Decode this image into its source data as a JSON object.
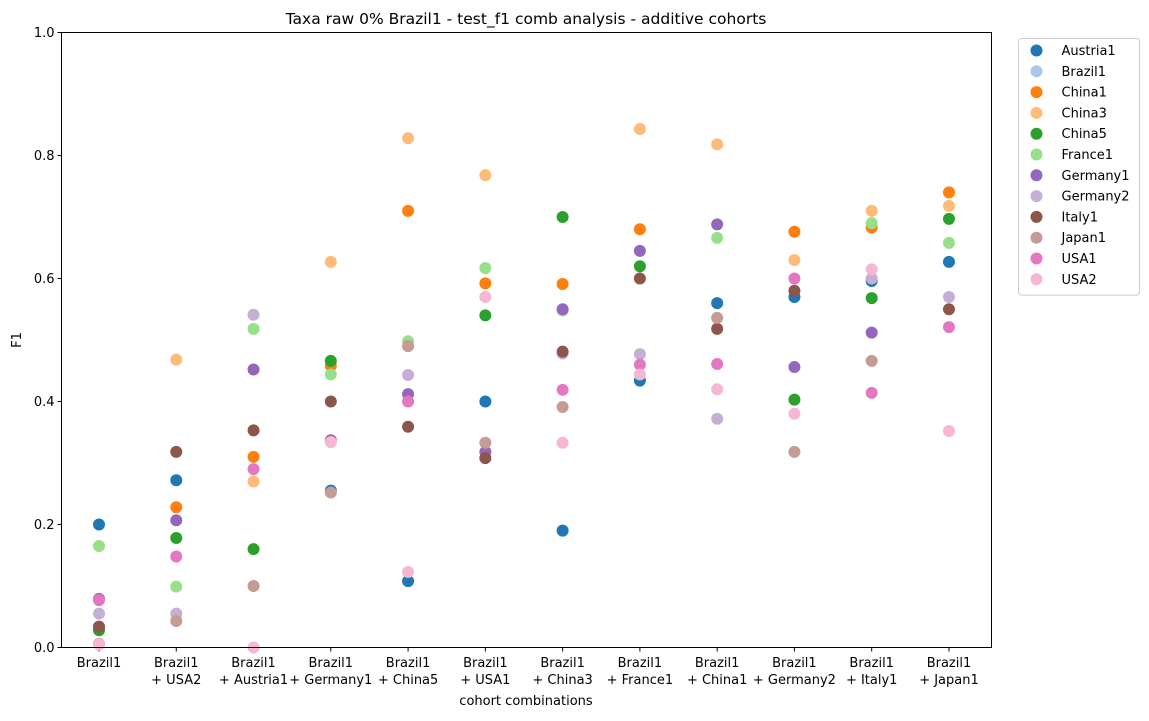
{
  "chart_data": {
    "type": "scatter",
    "title": "Taxa raw 0% Brazil1 - test_f1 comb analysis - additive cohorts",
    "xlabel": "cohort combinations",
    "ylabel": "F1",
    "ylim": [
      0,
      1.0
    ],
    "yticks": [
      "0.0",
      "0.2",
      "0.4",
      "0.6",
      "0.8",
      "1.0"
    ],
    "grid": false,
    "legend_position": "outside-top-right",
    "categories": [
      [
        "Brazil1"
      ],
      [
        "Brazil1",
        "+ USA2"
      ],
      [
        "Brazil1",
        "+ Austria1"
      ],
      [
        "Brazil1",
        "+ Germany1"
      ],
      [
        "Brazil1",
        "+ China5"
      ],
      [
        "Brazil1",
        "+ USA1"
      ],
      [
        "Brazil1",
        "+ China3"
      ],
      [
        "Brazil1",
        "+ France1"
      ],
      [
        "Brazil1",
        "+ China1"
      ],
      [
        "Brazil1",
        "+ Germany2"
      ],
      [
        "Brazil1",
        "+ Italy1"
      ],
      [
        "Brazil1",
        "+ Japan1"
      ]
    ],
    "series": [
      {
        "name": "Austria1",
        "color": "#1f77b4",
        "values": [
          0.2,
          0.272,
          null,
          0.255,
          0.108,
          0.4,
          0.19,
          0.434,
          0.56,
          0.57,
          0.596,
          0.627
        ]
      },
      {
        "name": "Brazil1",
        "color": "#aec7e8",
        "values": [
          null,
          null,
          null,
          null,
          null,
          null,
          null,
          null,
          null,
          null,
          null,
          null
        ]
      },
      {
        "name": "China1",
        "color": "#ff7f0e",
        "values": [
          0.03,
          0.228,
          0.31,
          0.458,
          0.71,
          0.592,
          0.591,
          0.68,
          null,
          0.676,
          0.683,
          0.74
        ]
      },
      {
        "name": "China3",
        "color": "#ffbb78",
        "values": [
          null,
          0.468,
          0.27,
          0.627,
          0.828,
          0.768,
          null,
          0.843,
          0.818,
          0.63,
          0.71,
          0.718
        ]
      },
      {
        "name": "China5",
        "color": "#2ca02c",
        "values": [
          0.028,
          0.178,
          0.16,
          0.466,
          null,
          0.54,
          0.7,
          0.62,
          null,
          0.403,
          0.568,
          0.697
        ]
      },
      {
        "name": "France1",
        "color": "#98df8a",
        "values": [
          0.165,
          0.099,
          0.518,
          0.444,
          0.498,
          0.617,
          0.548,
          null,
          0.666,
          null,
          0.69,
          0.658
        ]
      },
      {
        "name": "Germany1",
        "color": "#9467bd",
        "values": [
          0.079,
          0.207,
          0.452,
          0.337,
          0.412,
          0.318,
          0.55,
          0.645,
          0.688,
          0.456,
          0.512,
          null
        ]
      },
      {
        "name": "Germany2",
        "color": "#c5b0d5",
        "values": [
          0.055,
          0.055,
          0.541,
          null,
          0.443,
          null,
          0.478,
          0.477,
          0.372,
          null,
          0.6,
          0.57
        ]
      },
      {
        "name": "Italy1",
        "color": "#8c564b",
        "values": [
          0.034,
          0.318,
          0.353,
          0.4,
          0.359,
          0.308,
          0.481,
          0.6,
          0.518,
          0.58,
          null,
          0.55
        ]
      },
      {
        "name": "Japan1",
        "color": "#c49c94",
        "values": [
          0.006,
          0.043,
          0.1,
          0.252,
          0.49,
          0.333,
          0.391,
          null,
          0.536,
          0.318,
          0.466,
          null
        ]
      },
      {
        "name": "USA1",
        "color": "#e377c2",
        "values": [
          0.077,
          0.148,
          0.29,
          null,
          0.4,
          null,
          0.419,
          0.46,
          0.461,
          0.6,
          0.414,
          0.521
        ]
      },
      {
        "name": "USA2",
        "color": "#f7b6d2",
        "values": [
          0.005,
          null,
          0.0,
          0.334,
          0.123,
          0.57,
          0.333,
          0.444,
          0.42,
          0.38,
          0.615,
          0.352
        ]
      }
    ]
  }
}
